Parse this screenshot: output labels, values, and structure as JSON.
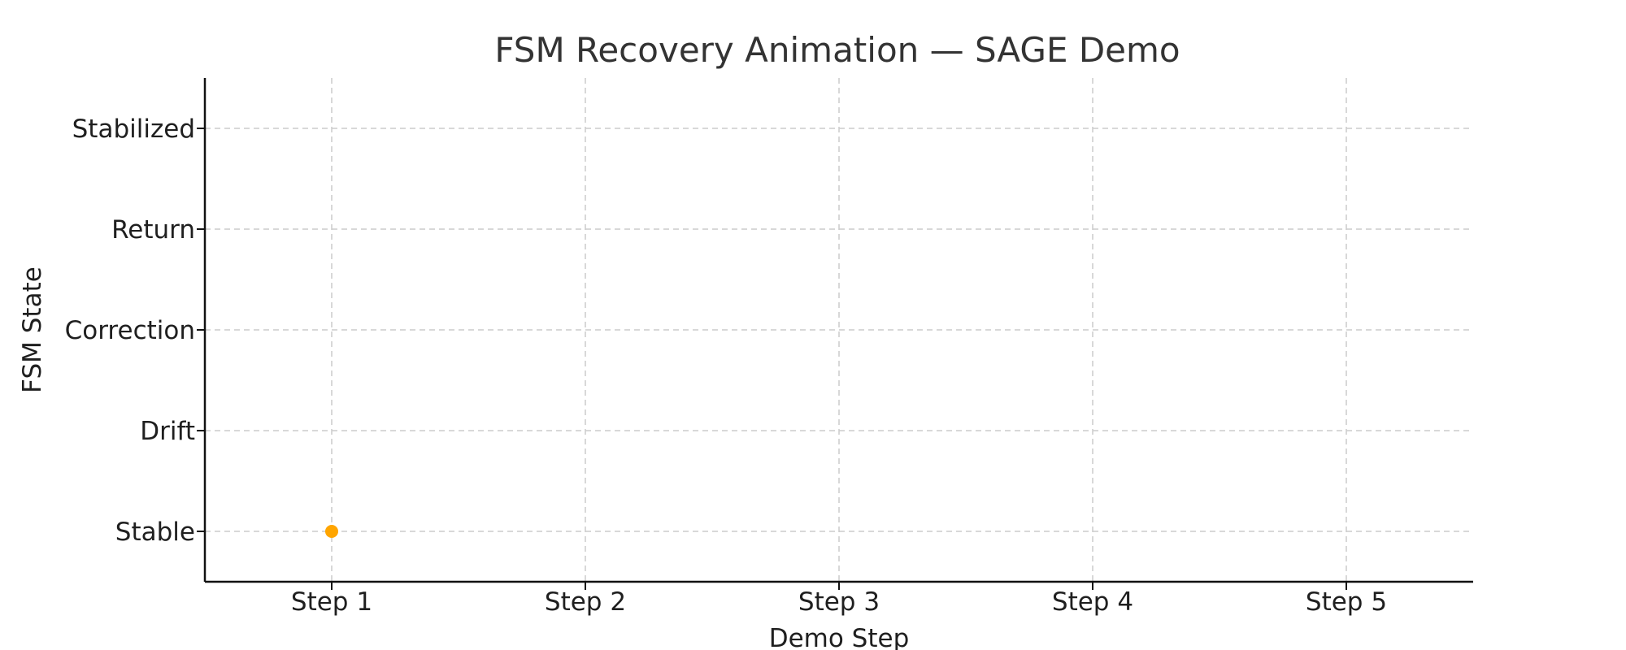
{
  "chart_data": {
    "type": "scatter",
    "title": "FSM Recovery Animation — SAGE Demo",
    "xlabel": "Demo Step",
    "ylabel": "FSM State",
    "categories": [
      "Step 1",
      "Step 2",
      "Step 3",
      "Step 4",
      "Step 5"
    ],
    "y_categories": [
      "Stable",
      "Drift",
      "Correction",
      "Return",
      "Stabilized"
    ],
    "series": [
      {
        "color": "#FFA500",
        "points": [
          {
            "x": "Step 1",
            "y": "Stable"
          }
        ]
      }
    ],
    "grid": true,
    "legend": "none"
  }
}
